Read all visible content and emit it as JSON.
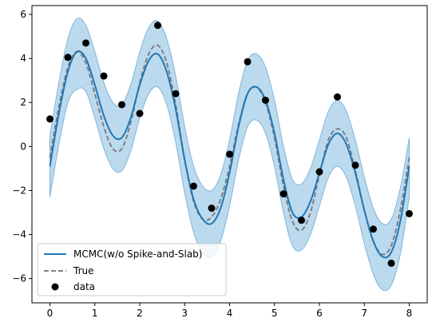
{
  "chart_data": {
    "type": "line",
    "title": "",
    "xlabel": "",
    "ylabel": "",
    "xlim": [
      -0.4,
      8.4
    ],
    "ylim": [
      -7.1,
      6.4
    ],
    "x_ticks": [
      0,
      1,
      2,
      3,
      4,
      5,
      6,
      7,
      8
    ],
    "y_ticks": [
      -6,
      -4,
      -2,
      0,
      2,
      4,
      6
    ],
    "x_tick_labels": [
      "0",
      "1",
      "2",
      "3",
      "4",
      "5",
      "6",
      "7",
      "8"
    ],
    "y_tick_labels": [
      "−6",
      "−4",
      "−2",
      "0",
      "2",
      "4",
      "6"
    ],
    "grid": false,
    "legend_position": "lower-left",
    "colors": {
      "mcmc": "#1f77b4",
      "band": "#a6cee8",
      "band_edge": "#7fb4dc",
      "true": "#7f7f7f",
      "data": "#000000"
    },
    "series": [
      {
        "name": "MCMC(w/o Spike-and-Slab)",
        "style": "solid",
        "x": [
          0,
          0.2,
          0.4,
          0.6,
          0.8,
          1.0,
          1.2,
          1.4,
          1.6,
          1.8,
          2.0,
          2.2,
          2.4,
          2.6,
          2.8,
          3.0,
          3.2,
          3.4,
          3.6,
          3.8,
          4.0,
          4.2,
          4.4,
          4.6,
          4.8,
          5.0,
          5.2,
          5.4,
          5.6,
          5.8,
          6.0,
          6.2,
          6.4,
          6.6,
          6.8,
          7.0,
          7.2,
          7.4,
          7.6,
          7.8,
          8.0
        ],
        "y": [
          -0.9,
          1.5,
          3.4,
          4.3,
          4.0,
          2.8,
          1.4,
          0.5,
          0.4,
          1.3,
          2.8,
          3.9,
          4.2,
          3.4,
          1.7,
          -0.6,
          -2.4,
          -3.3,
          -3.5,
          -2.8,
          -1.2,
          0.9,
          2.4,
          2.7,
          2.1,
          0.6,
          -1.5,
          -3.0,
          -3.2,
          -2.5,
          -1.2,
          0.1,
          0.6,
          0.1,
          -1.2,
          -2.9,
          -4.3,
          -5.0,
          -4.8,
          -3.4,
          -0.9
        ],
        "band_upper": [
          0.5,
          2.9,
          4.9,
          5.8,
          5.5,
          4.3,
          2.9,
          2.0,
          1.9,
          2.8,
          4.3,
          5.4,
          5.7,
          4.9,
          3.2,
          0.9,
          -0.9,
          -1.8,
          -2.0,
          -1.3,
          0.3,
          2.4,
          3.9,
          4.2,
          3.6,
          2.1,
          0.0,
          -1.5,
          -1.7,
          -1.0,
          0.3,
          1.6,
          2.1,
          1.6,
          0.3,
          -1.4,
          -2.8,
          -3.5,
          -3.3,
          -1.9,
          0.4
        ],
        "band_lower": [
          -2.3,
          0.1,
          2.0,
          2.6,
          2.5,
          1.3,
          -0.1,
          -1.0,
          -1.1,
          -0.2,
          1.3,
          2.4,
          2.7,
          1.9,
          0.2,
          -2.1,
          -3.9,
          -4.8,
          -5.0,
          -4.3,
          -2.7,
          -0.6,
          0.9,
          1.2,
          0.6,
          -0.9,
          -3.0,
          -4.5,
          -4.7,
          -4.0,
          -2.7,
          -1.4,
          -0.9,
          -1.4,
          -2.7,
          -4.4,
          -5.8,
          -6.5,
          -6.3,
          -4.9,
          -2.3
        ]
      },
      {
        "name": "True",
        "style": "dashed",
        "x": [
          0,
          0.2,
          0.4,
          0.6,
          0.8,
          1.0,
          1.2,
          1.4,
          1.6,
          1.8,
          2.0,
          2.2,
          2.4,
          2.6,
          2.8,
          3.0,
          3.2,
          3.4,
          3.6,
          3.8,
          4.0,
          4.2,
          4.4,
          4.6,
          4.8,
          5.0,
          5.2,
          5.4,
          5.6,
          5.8,
          6.0,
          6.2,
          6.4,
          6.6,
          6.8,
          7.0,
          7.2,
          7.4,
          7.6,
          7.8,
          8.0
        ],
        "y": [
          -0.5,
          1.8,
          3.6,
          4.3,
          3.8,
          2.4,
          0.9,
          -0.1,
          -0.1,
          1.1,
          2.9,
          4.2,
          4.6,
          3.8,
          1.9,
          -0.6,
          -2.5,
          -3.3,
          -3.2,
          -2.4,
          -0.9,
          1.0,
          2.4,
          2.7,
          2.0,
          0.4,
          -1.8,
          -3.4,
          -3.8,
          -3.0,
          -1.3,
          0.3,
          0.8,
          0.4,
          -1.1,
          -2.9,
          -4.3,
          -4.9,
          -4.5,
          -2.9,
          -0.5
        ]
      }
    ],
    "scatter": {
      "name": "data",
      "x": [
        0,
        0.4,
        0.8,
        1.2,
        1.6,
        2.0,
        2.4,
        2.8,
        3.2,
        3.6,
        4.0,
        4.4,
        4.8,
        5.2,
        5.6,
        6.0,
        6.4,
        6.8,
        7.2,
        7.6,
        8.0
      ],
      "y": [
        1.25,
        4.05,
        4.7,
        3.2,
        1.9,
        1.5,
        5.5,
        2.4,
        -1.8,
        -2.8,
        -0.35,
        3.85,
        2.1,
        -2.15,
        -3.35,
        -1.15,
        2.25,
        -0.85,
        -3.75,
        -5.3,
        -3.05
      ]
    }
  }
}
